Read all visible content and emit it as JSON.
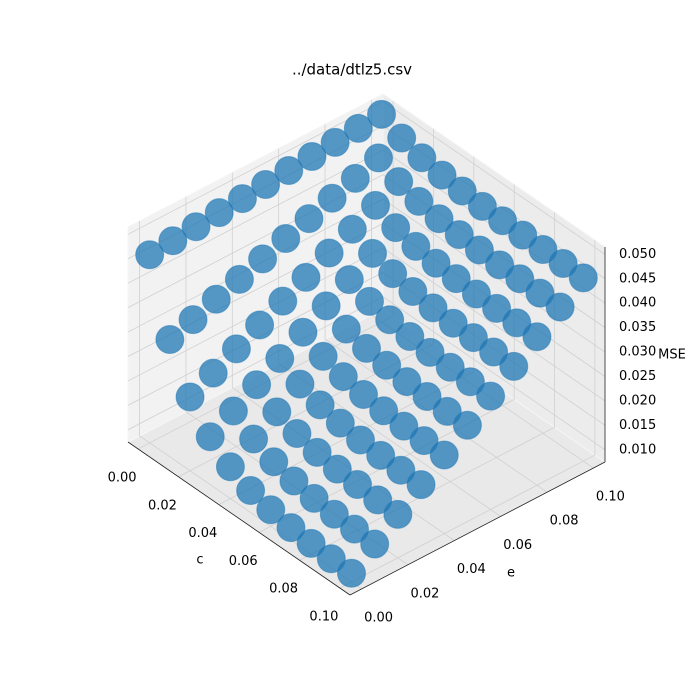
{
  "chart_data": {
    "type": "scatter3d",
    "title": "../data/dtlz5.csv",
    "xlabel": "c",
    "ylabel": "e",
    "zlabel": "MSE",
    "color": "#1f77b4",
    "grid": true,
    "xlim": [
      -0.005,
      0.105
    ],
    "ylim": [
      -0.005,
      0.105
    ],
    "zlim": [
      0.0075,
      0.0515
    ],
    "xticks": [
      {
        "value": 0,
        "label": "0.00"
      },
      {
        "value": 0.02,
        "label": "0.02"
      },
      {
        "value": 0.04,
        "label": "0.04"
      },
      {
        "value": 0.06,
        "label": "0.06"
      },
      {
        "value": 0.08,
        "label": "0.08"
      },
      {
        "value": 0.1,
        "label": "0.10"
      }
    ],
    "yticks": [
      {
        "value": 0,
        "label": "0.00"
      },
      {
        "value": 0.02,
        "label": "0.02"
      },
      {
        "value": 0.04,
        "label": "0.04"
      },
      {
        "value": 0.06,
        "label": "0.06"
      },
      {
        "value": 0.08,
        "label": "0.08"
      },
      {
        "value": 0.1,
        "label": "0.10"
      }
    ],
    "zticks": [
      {
        "value": 0.01,
        "label": "0.010"
      },
      {
        "value": 0.015,
        "label": "0.015"
      },
      {
        "value": 0.02,
        "label": "0.020"
      },
      {
        "value": 0.025,
        "label": "0.025"
      },
      {
        "value": 0.03,
        "label": "0.030"
      },
      {
        "value": 0.035,
        "label": "0.035"
      },
      {
        "value": 0.04,
        "label": "0.040"
      },
      {
        "value": 0.045,
        "label": "0.045"
      },
      {
        "value": 0.05,
        "label": "0.050"
      }
    ],
    "x": [
      0,
      0.01,
      0.02,
      0.03,
      0.04,
      0.05,
      0.06,
      0.07,
      0.08,
      0.09,
      0.1
    ],
    "y": [
      0,
      0.01,
      0.02,
      0.03,
      0.04,
      0.05,
      0.06,
      0.07,
      0.08,
      0.09,
      0.1
    ],
    "values": [
      [
        0.046,
        0.0464,
        0.0468,
        0.0472,
        0.0476,
        0.048,
        0.0484,
        0.0488,
        0.0492,
        0.0496,
        0.05
      ],
      [
        0.0315,
        0.0331,
        0.0348,
        0.0364,
        0.0381,
        0.0398,
        0.0414,
        0.0431,
        0.0447,
        0.0464,
        0.048
      ],
      [
        0.0226,
        0.025,
        0.0275,
        0.0299,
        0.0323,
        0.0347,
        0.0372,
        0.0396,
        0.042,
        0.0444,
        0.0468
      ],
      [
        0.0173,
        0.0201,
        0.023,
        0.0259,
        0.0288,
        0.0317,
        0.0346,
        0.0375,
        0.0403,
        0.0432,
        0.0461
      ],
      [
        0.014,
        0.0172,
        0.0203,
        0.0235,
        0.0267,
        0.0298,
        0.033,
        0.0362,
        0.0393,
        0.0425,
        0.0457
      ],
      [
        0.012,
        0.0154,
        0.0187,
        0.0221,
        0.0254,
        0.0287,
        0.0321,
        0.0354,
        0.0387,
        0.0421,
        0.0454
      ],
      [
        0.0109,
        0.0143,
        0.0177,
        0.0212,
        0.0246,
        0.0281,
        0.0315,
        0.0349,
        0.0384,
        0.0418,
        0.0453
      ],
      [
        0.0101,
        0.0136,
        0.0171,
        0.0206,
        0.0241,
        0.0276,
        0.0311,
        0.0346,
        0.0381,
        0.0416,
        0.0452
      ],
      [
        0.0097,
        0.0132,
        0.0168,
        0.0203,
        0.0238,
        0.0274,
        0.0309,
        0.0345,
        0.038,
        0.0416,
        0.0451
      ],
      [
        0.0094,
        0.013,
        0.0165,
        0.0201,
        0.0237,
        0.0272,
        0.0308,
        0.0344,
        0.0379,
        0.0415,
        0.0451
      ],
      [
        0.0093,
        0.0128,
        0.0164,
        0.02,
        0.0236,
        0.0272,
        0.0307,
        0.0343,
        0.0379,
        0.0415,
        0.045
      ]
    ]
  }
}
